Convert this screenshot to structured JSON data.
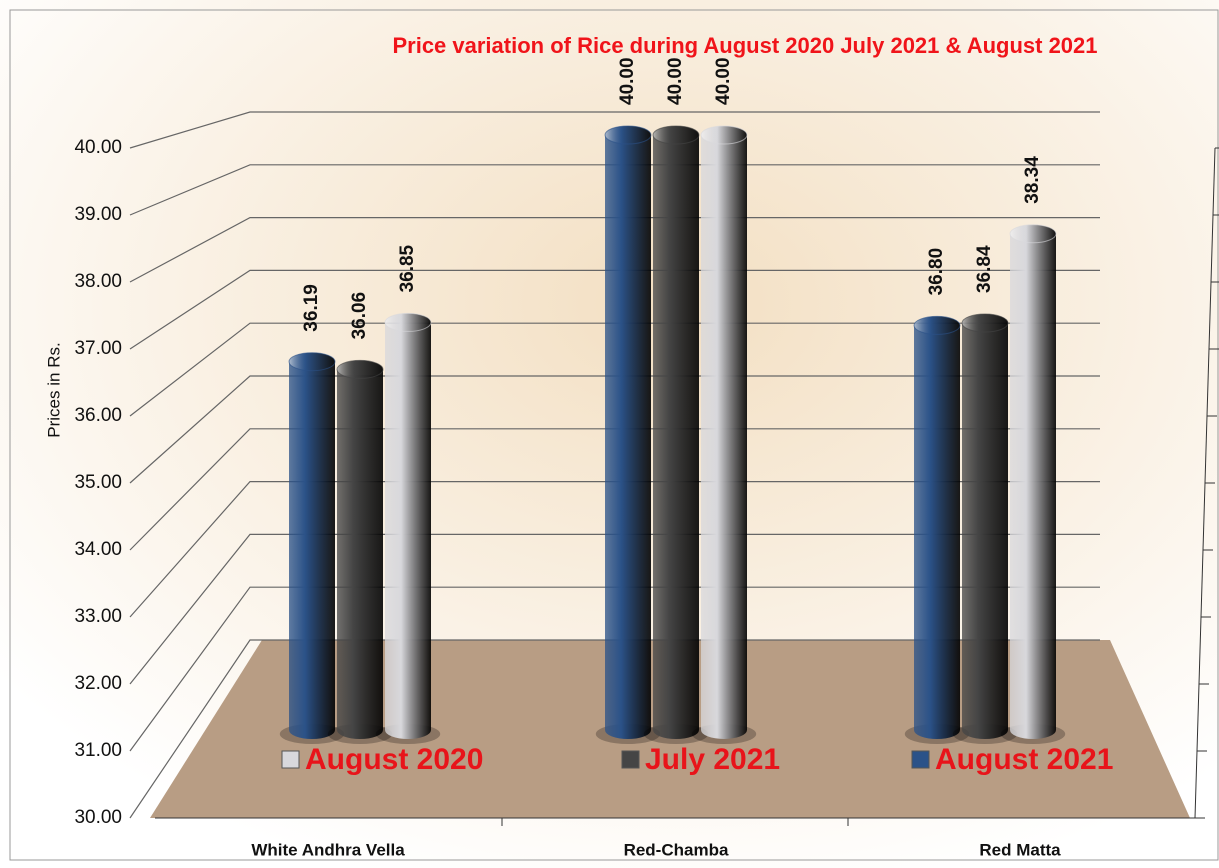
{
  "chart_data": {
    "type": "bar3d",
    "title": "Price variation of Rice during  August 2020  July 2021  &  August 2021",
    "y_label": "Prices in Rs.",
    "categories": [
      "White Andhra Vella",
      "Red-Chamba",
      "Red Matta"
    ],
    "series": [
      {
        "name": "August 2021",
        "color": "#2b5288",
        "values": [
          36.19,
          40.0,
          36.8
        ],
        "value_labels": [
          "36.19",
          "40.00",
          "36.80"
        ]
      },
      {
        "name": "July 2021",
        "color": "#454545",
        "values": [
          36.06,
          40.0,
          36.84
        ],
        "value_labels": [
          "36.06",
          "40.00",
          "36.84"
        ]
      },
      {
        "name": "August 2020",
        "color": "#d8d8dc",
        "values": [
          36.85,
          40.0,
          38.34
        ],
        "value_labels": [
          "36.85",
          "40.00",
          "38.34"
        ]
      }
    ],
    "ylim": [
      30,
      40
    ],
    "yticks": [
      {
        "value": 30,
        "label": "30.00"
      },
      {
        "value": 31,
        "label": "31.00"
      },
      {
        "value": 32,
        "label": "32.00"
      },
      {
        "value": 33,
        "label": "33.00"
      },
      {
        "value": 34,
        "label": "34.00"
      },
      {
        "value": 35,
        "label": "35.00"
      },
      {
        "value": 36,
        "label": "36.00"
      },
      {
        "value": 37,
        "label": "37.00"
      },
      {
        "value": 38,
        "label": "38.00"
      },
      {
        "value": 39,
        "label": "39.00"
      },
      {
        "value": 40,
        "label": "40.00"
      }
    ],
    "grid": true,
    "legend": "bottom"
  }
}
